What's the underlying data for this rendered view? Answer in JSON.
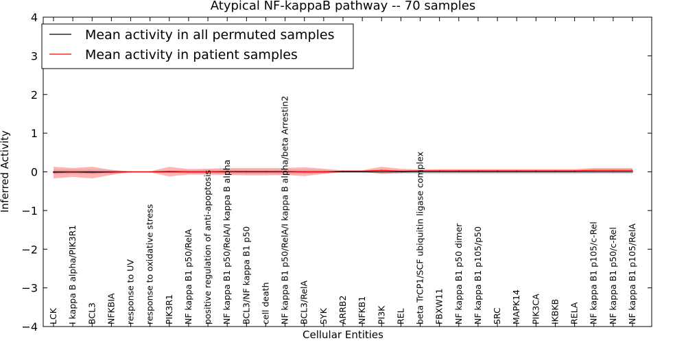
{
  "chart_data": {
    "type": "line",
    "title": "Atypical NF-kappaB pathway -- 70 samples",
    "xlabel": "Cellular Entities",
    "ylabel": "Inferred Activity",
    "ylim": [
      -4,
      4
    ],
    "yticks": [
      "−4",
      "−3",
      "−2",
      "−1",
      "0",
      "1",
      "2",
      "3",
      "4"
    ],
    "yticks_values": [
      -4,
      -3,
      -2,
      -1,
      0,
      1,
      2,
      3,
      4
    ],
    "grid": false,
    "legend_position": "top-left",
    "categories": [
      "LCK",
      "I kappa B alpha/PIK3R1",
      "BCL3",
      "NFKBIA",
      "response to UV",
      "response to oxidative stress",
      "PIK3R1",
      "NF kappa B1 p50/RelA",
      "positive regulation of anti-apoptosis",
      "NF kappa B1 p50/RelA/I kappa B alpha",
      "BCL3/NF kappa B1 p50",
      "cell death",
      "NF kappa B1 p50/RelA/I kappa B alpha/beta Arrestin2",
      "BCL3/RelA",
      "SYK",
      "ARRB2",
      "NFKB1",
      "PI3K",
      "REL",
      "beta TrCP1/SCF ubiquitin ligase complex",
      "FBXW11",
      "NF kappa B1 p50 dimer",
      "NF kappa B1 p105/p50",
      "SRC",
      "MAPK14",
      "PIK3CA",
      "IKBKB",
      "RELA",
      "NF kappa B1 p105/c-Rel",
      "NF kappa B1 p50/c-Rel",
      "NF kappa B1 p105/RelA"
    ],
    "series": [
      {
        "name": "Mean activity in all permuted samples",
        "color": "#000000",
        "values": [
          0.0,
          0.0,
          0.0,
          0.0,
          0.0,
          0.0,
          0.0,
          0.0,
          0.0,
          0.0,
          0.0,
          0.0,
          0.0,
          0.0,
          0.0,
          0.0,
          0.0,
          0.0,
          0.0,
          0.0,
          0.0,
          0.0,
          0.0,
          0.0,
          0.0,
          0.0,
          0.0,
          0.0,
          0.0,
          0.0,
          0.0
        ],
        "band_lower": [
          -0.06,
          -0.06,
          -0.06,
          -0.05,
          -0.01,
          -0.01,
          -0.04,
          -0.05,
          -0.05,
          -0.06,
          -0.06,
          -0.06,
          -0.06,
          -0.06,
          -0.05,
          -0.02,
          -0.02,
          -0.04,
          -0.04,
          -0.05,
          -0.05,
          -0.05,
          -0.05,
          -0.05,
          -0.05,
          -0.05,
          -0.05,
          -0.05,
          -0.05,
          -0.05,
          -0.05
        ],
        "band_upper": [
          0.06,
          0.06,
          0.06,
          0.05,
          0.01,
          0.01,
          0.04,
          0.05,
          0.05,
          0.06,
          0.06,
          0.06,
          0.06,
          0.06,
          0.05,
          0.02,
          0.02,
          0.04,
          0.04,
          0.05,
          0.05,
          0.05,
          0.05,
          0.05,
          0.05,
          0.05,
          0.05,
          0.05,
          0.05,
          0.05,
          0.05
        ],
        "band_color": "#c8c8dc"
      },
      {
        "name": "Mean activity in patient samples",
        "color": "#ff0000",
        "values": [
          -0.02,
          -0.01,
          -0.02,
          -0.01,
          0.0,
          0.0,
          0.01,
          0.0,
          0.0,
          0.01,
          0.01,
          0.01,
          0.01,
          0.0,
          0.0,
          0.02,
          0.02,
          0.04,
          0.02,
          0.03,
          0.03,
          0.03,
          0.03,
          0.03,
          0.03,
          0.03,
          0.03,
          0.03,
          0.04,
          0.04,
          0.04
        ],
        "band_lower": [
          -0.17,
          -0.13,
          -0.17,
          -0.08,
          -0.01,
          -0.01,
          -0.12,
          -0.07,
          -0.07,
          -0.08,
          -0.09,
          -0.09,
          -0.08,
          -0.11,
          -0.05,
          0.0,
          0.0,
          -0.05,
          -0.03,
          0.0,
          0.0,
          0.0,
          0.0,
          0.0,
          0.0,
          0.0,
          0.0,
          0.0,
          0.0,
          0.0,
          0.0
        ],
        "band_upper": [
          0.13,
          0.1,
          0.13,
          0.05,
          0.01,
          0.01,
          0.13,
          0.07,
          0.08,
          0.1,
          0.1,
          0.1,
          0.1,
          0.12,
          0.08,
          0.04,
          0.04,
          0.13,
          0.08,
          0.06,
          0.07,
          0.07,
          0.07,
          0.07,
          0.07,
          0.07,
          0.07,
          0.07,
          0.1,
          0.1,
          0.1
        ],
        "band_color": "#ff7777"
      }
    ]
  }
}
